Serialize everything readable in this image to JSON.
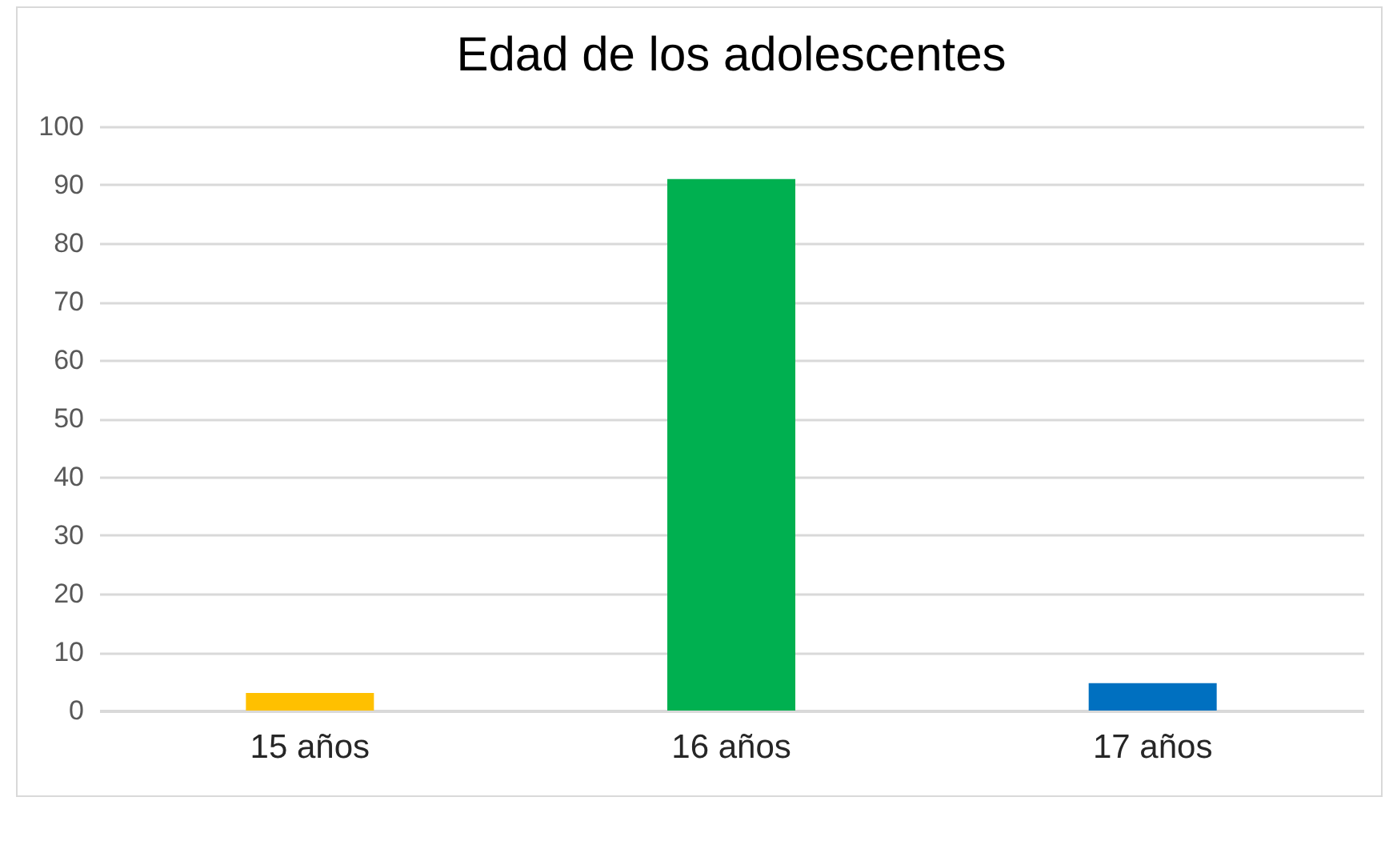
{
  "chart_data": {
    "type": "bar",
    "title": "Edad de los adolescentes",
    "categories": [
      "15 años",
      "16 años",
      "17 años"
    ],
    "values": [
      3,
      91,
      4.7
    ],
    "colors": [
      "#ffc000",
      "#00b050",
      "#0070c0"
    ],
    "ylim": [
      0,
      100
    ],
    "yticks": [
      0,
      10,
      20,
      30,
      40,
      50,
      60,
      70,
      80,
      90,
      100
    ],
    "grid": "y"
  }
}
